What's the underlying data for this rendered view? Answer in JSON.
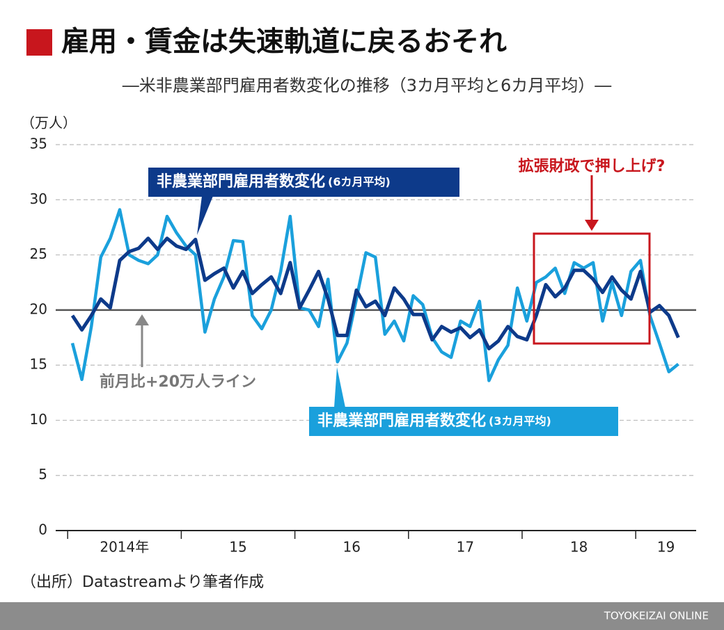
{
  "chart_data": {
    "type": "line",
    "title": "雇用・賃金は失速軌道に戻るおそれ",
    "subtitle": "―米非農業部門雇用者数変化の推移（3カ月平均と6カ月平均）―",
    "y_unit": "（万人）",
    "year_labels": [
      "2014年",
      "15",
      "16",
      "17",
      "18",
      "19"
    ],
    "ylim": [
      0,
      35
    ],
    "yticks": [
      0,
      5,
      10,
      15,
      20,
      25,
      30,
      35
    ],
    "grid": true,
    "reference_line": 20,
    "reference_label": "前月比+20万人ライン",
    "highlight_label": "拡張財政で押し上げ?",
    "series": [
      {
        "name": "非農業部門雇用者数変化",
        "note": "(3カ月平均)",
        "color": "#1aa0dc",
        "values": [
          17.0,
          13.7,
          18.5,
          24.8,
          26.5,
          29.1,
          25.0,
          24.5,
          24.2,
          25.0,
          28.5,
          27.0,
          25.8,
          25.0,
          18.0,
          21.0,
          23.0,
          26.3,
          26.2,
          19.5,
          18.3,
          20.0,
          23.5,
          28.5,
          20.2,
          20.0,
          18.5,
          22.8,
          15.3,
          17.0,
          21.0,
          25.2,
          24.8,
          17.8,
          19.0,
          17.2,
          21.3,
          20.5,
          17.5,
          16.2,
          15.7,
          19.0,
          18.5,
          20.8,
          13.6,
          15.5,
          16.8,
          22.0,
          19.0,
          22.5,
          23.0,
          23.8,
          21.5,
          24.3,
          23.8,
          24.3,
          19.0,
          22.5,
          19.5,
          23.5,
          24.5,
          19.5,
          17.0,
          14.4,
          15.1
        ]
      },
      {
        "name": "非農業部門雇用者数変化",
        "note": "(6カ月平均)",
        "color": "#0d3a8a",
        "values": [
          19.5,
          18.2,
          19.5,
          21.0,
          20.2,
          24.5,
          25.3,
          25.6,
          26.5,
          25.5,
          26.5,
          25.8,
          25.5,
          26.4,
          22.7,
          23.3,
          23.8,
          22.0,
          23.5,
          21.5,
          22.3,
          23.0,
          21.5,
          24.3,
          20.2,
          21.8,
          23.5,
          21.0,
          17.7,
          17.7,
          21.8,
          20.3,
          20.8,
          19.5,
          22.0,
          21.0,
          19.6,
          19.6,
          17.3,
          18.5,
          18.0,
          18.4,
          17.5,
          18.2,
          16.5,
          17.2,
          18.5,
          17.6,
          17.3,
          19.5,
          22.3,
          21.2,
          22.0,
          23.6,
          23.6,
          22.8,
          21.6,
          23.0,
          21.8,
          21.0,
          23.5,
          19.8,
          20.4,
          19.5,
          17.5
        ]
      }
    ],
    "source": "（出所）Datastreamより筆者作成",
    "brand": "TOYOKEIZAI ONLINE"
  }
}
